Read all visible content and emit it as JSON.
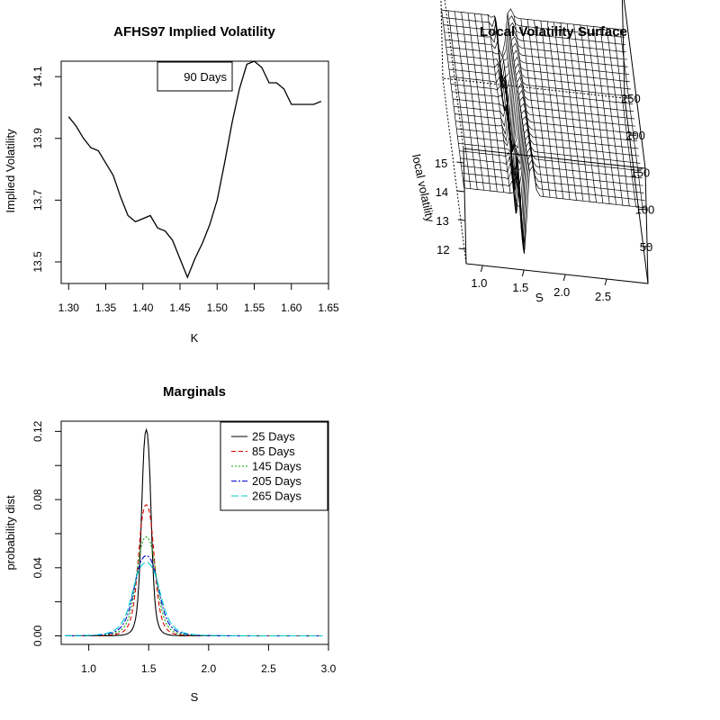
{
  "chart_data": [
    {
      "type": "line",
      "title": "AFHS97 Implied Volatility",
      "xlabel": "K",
      "ylabel": "Implied Volatility",
      "xlim": [
        1.29,
        1.65
      ],
      "ylim": [
        13.43,
        14.15
      ],
      "x_ticks": [
        "1.30",
        "1.35",
        "1.40",
        "1.45",
        "1.50",
        "1.55",
        "1.60",
        "1.65"
      ],
      "y_ticks": [
        "13.5",
        "13.7",
        "13.9",
        "14.1"
      ],
      "legend": {
        "position": "top-center",
        "entries": [
          "90 Days"
        ]
      },
      "series": [
        {
          "name": "90 Days",
          "color": "#000000",
          "x": [
            1.3,
            1.31,
            1.32,
            1.33,
            1.34,
            1.35,
            1.36,
            1.37,
            1.38,
            1.39,
            1.4,
            1.41,
            1.42,
            1.43,
            1.44,
            1.45,
            1.46,
            1.47,
            1.48,
            1.49,
            1.5,
            1.51,
            1.52,
            1.53,
            1.54,
            1.55,
            1.56,
            1.57,
            1.58,
            1.59,
            1.6,
            1.61,
            1.62,
            1.63,
            1.64
          ],
          "y": [
            13.97,
            13.94,
            13.9,
            13.87,
            13.86,
            13.82,
            13.78,
            13.71,
            13.65,
            13.63,
            13.64,
            13.65,
            13.61,
            13.6,
            13.57,
            13.51,
            13.45,
            13.51,
            13.56,
            13.62,
            13.7,
            13.82,
            13.95,
            14.06,
            14.14,
            14.15,
            14.13,
            14.08,
            14.08,
            14.06,
            14.01,
            14.01,
            14.01,
            14.01,
            14.02
          ]
        }
      ]
    },
    {
      "type": "surface3d",
      "title": "Local Volatility Surface",
      "xlabel": "S",
      "ylabel": "",
      "zlabel": "local volatility",
      "x_ticks": [
        "1.0",
        "1.5",
        "2.0",
        "2.5"
      ],
      "y_ticks": [
        "50",
        "100",
        "150",
        "200",
        "250"
      ],
      "z_ticks": [
        "12",
        "13",
        "14",
        "15"
      ],
      "xlim": [
        0.8,
        3.0
      ],
      "ylim": [
        0,
        250
      ],
      "zlim": [
        11.5,
        15.5
      ],
      "surface": {
        "base_level": 14,
        "center_S": 1.48,
        "note_levels": [
          11.6,
          15.6
        ]
      }
    },
    {
      "type": "line",
      "title": "Marginals",
      "xlabel": "S",
      "ylabel": "probability dist",
      "xlim": [
        0.77,
        3.0
      ],
      "ylim": [
        -0.005,
        0.126
      ],
      "x_ticks": [
        "1.0",
        "1.5",
        "2.0",
        "2.5",
        "3.0"
      ],
      "y_ticks": [
        "0.00",
        "0.04",
        "0.08",
        "0.12"
      ],
      "legend": {
        "position": "top-right",
        "entries": [
          "25  Days",
          "85  Days",
          "145  Days",
          "205  Days",
          "265  Days"
        ]
      },
      "series": [
        {
          "name": "25  Days",
          "color": "#000000",
          "dash": "",
          "center": 1.48,
          "peak": 0.121,
          "width": 0.045
        },
        {
          "name": "85  Days",
          "color": "#dd0000",
          "dash": "5,3",
          "center": 1.48,
          "peak": 0.077,
          "width": 0.075
        },
        {
          "name": "145  Days",
          "color": "#00aa00",
          "dash": "2,2",
          "center": 1.48,
          "peak": 0.058,
          "width": 0.095
        },
        {
          "name": "205  Days",
          "color": "#0000cc",
          "dash": "6,2,2,2",
          "center": 1.48,
          "peak": 0.047,
          "width": 0.115
        },
        {
          "name": "265  Days",
          "color": "#00cccc",
          "dash": "8,3",
          "center": 1.48,
          "peak": 0.043,
          "width": 0.13
        }
      ]
    }
  ]
}
